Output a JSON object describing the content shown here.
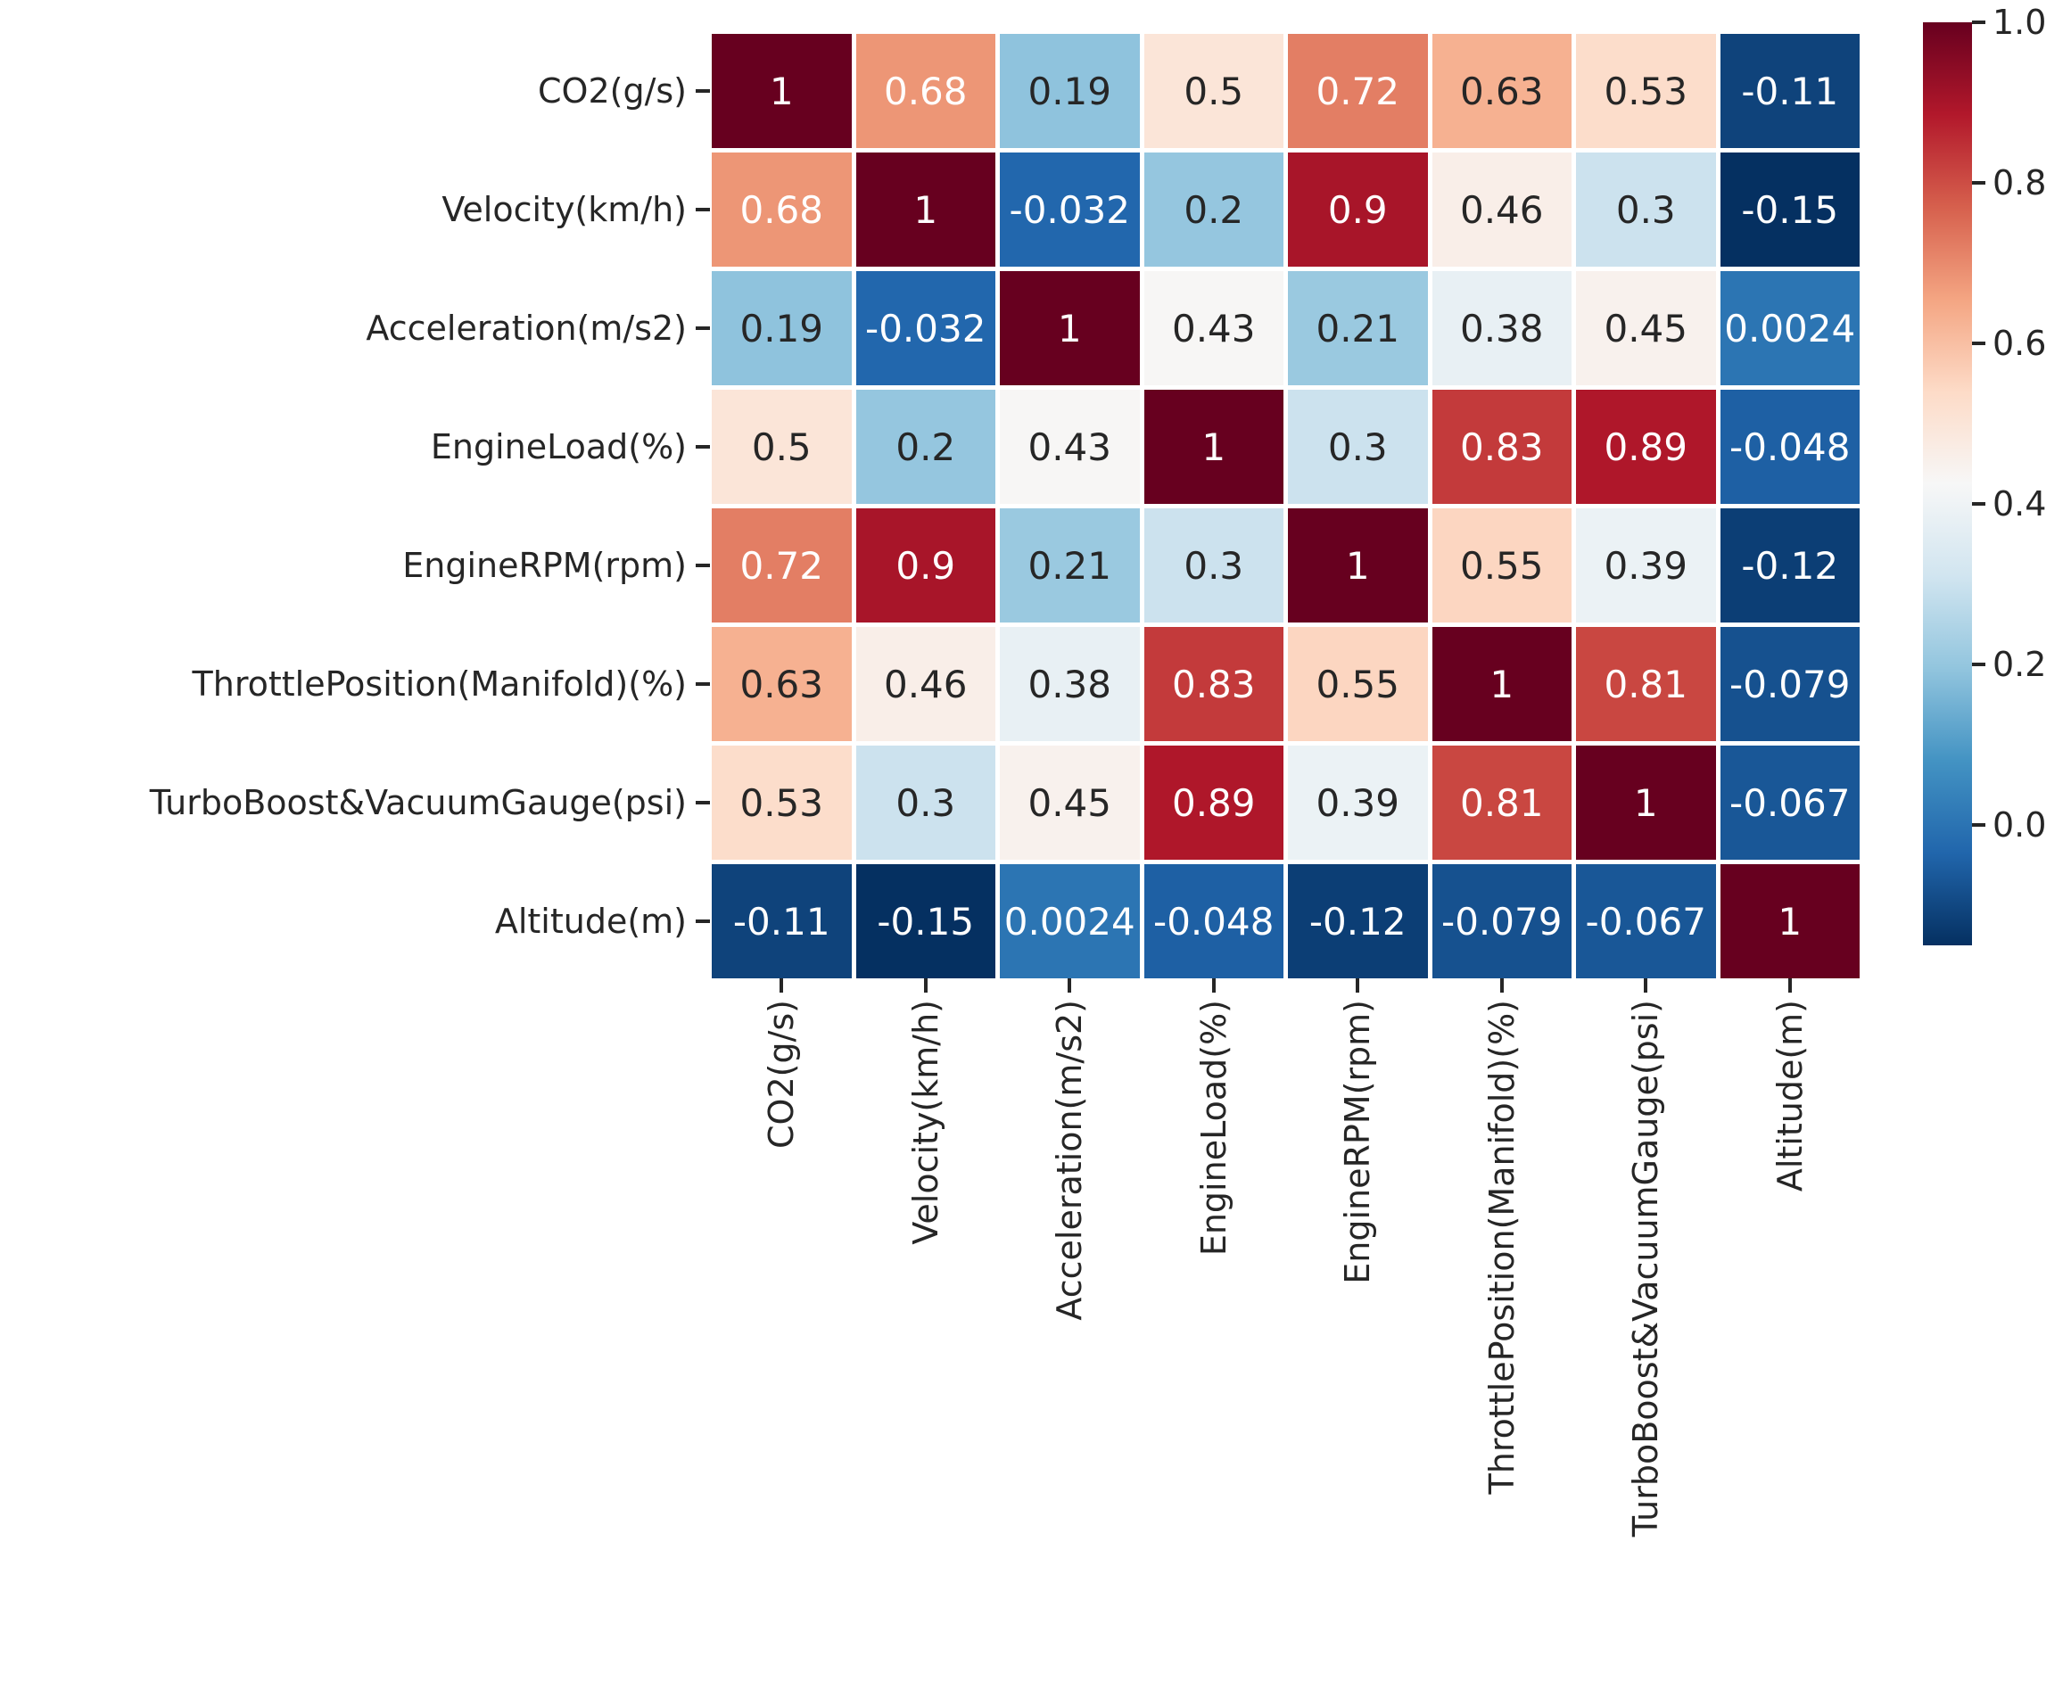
{
  "chart_data": {
    "type": "heatmap",
    "title": "",
    "x_labels": [
      "CO2(g/s)",
      "Velocity(km/h)",
      "Acceleration(m/s2)",
      "EngineLoad(%)",
      "EngineRPM(rpm)",
      "ThrottlePosition(Manifold)(%)",
      "TurboBoost&VacuumGauge(psi)",
      "Altitude(m)"
    ],
    "y_labels": [
      "CO2(g/s)",
      "Velocity(km/h)",
      "Acceleration(m/s2)",
      "EngineLoad(%)",
      "EngineRPM(rpm)",
      "ThrottlePosition(Manifold)(%)",
      "TurboBoost&VacuumGauge(psi)",
      "Altitude(m)"
    ],
    "matrix": [
      [
        "1",
        "0.68",
        "0.19",
        "0.5",
        "0.72",
        "0.63",
        "0.53",
        "-0.11"
      ],
      [
        "0.68",
        "1",
        "-0.032",
        "0.2",
        "0.9",
        "0.46",
        "0.3",
        "-0.15"
      ],
      [
        "0.19",
        "-0.032",
        "1",
        "0.43",
        "0.21",
        "0.38",
        "0.45",
        "0.0024"
      ],
      [
        "0.5",
        "0.2",
        "0.43",
        "1",
        "0.3",
        "0.83",
        "0.89",
        "-0.048"
      ],
      [
        "0.72",
        "0.9",
        "0.21",
        "0.3",
        "1",
        "0.55",
        "0.39",
        "-0.12"
      ],
      [
        "0.63",
        "0.46",
        "0.38",
        "0.83",
        "0.55",
        "1",
        "0.81",
        "-0.079"
      ],
      [
        "0.53",
        "0.3",
        "0.45",
        "0.89",
        "0.39",
        "0.81",
        "1",
        "-0.067"
      ],
      [
        "-0.11",
        "-0.15",
        "0.0024",
        "-0.048",
        "-0.12",
        "-0.079",
        "-0.067",
        "1"
      ]
    ],
    "colormap": "RdBu_r",
    "colormap_anchors_low_to_high": [
      "#053061",
      "#2166ac",
      "#4393c3",
      "#92c5de",
      "#d1e5f0",
      "#f7f7f7",
      "#fddbc7",
      "#f4a582",
      "#d6604d",
      "#b2182b",
      "#67001f"
    ],
    "vmin": -0.15,
    "vmax": 1.0,
    "colorbar_ticks": [
      {
        "label": "1.0",
        "value": 1.0
      },
      {
        "label": "0.8",
        "value": 0.8
      },
      {
        "label": "0.6",
        "value": 0.6
      },
      {
        "label": "0.4",
        "value": 0.4
      },
      {
        "label": "0.2",
        "value": 0.2
      },
      {
        "label": "0.0",
        "value": 0.0
      }
    ],
    "colorbar_position": "right",
    "annotation_color_dark": "#262626",
    "annotation_color_light": "#ffffff",
    "background_color": "#ffffff",
    "grid": false
  }
}
